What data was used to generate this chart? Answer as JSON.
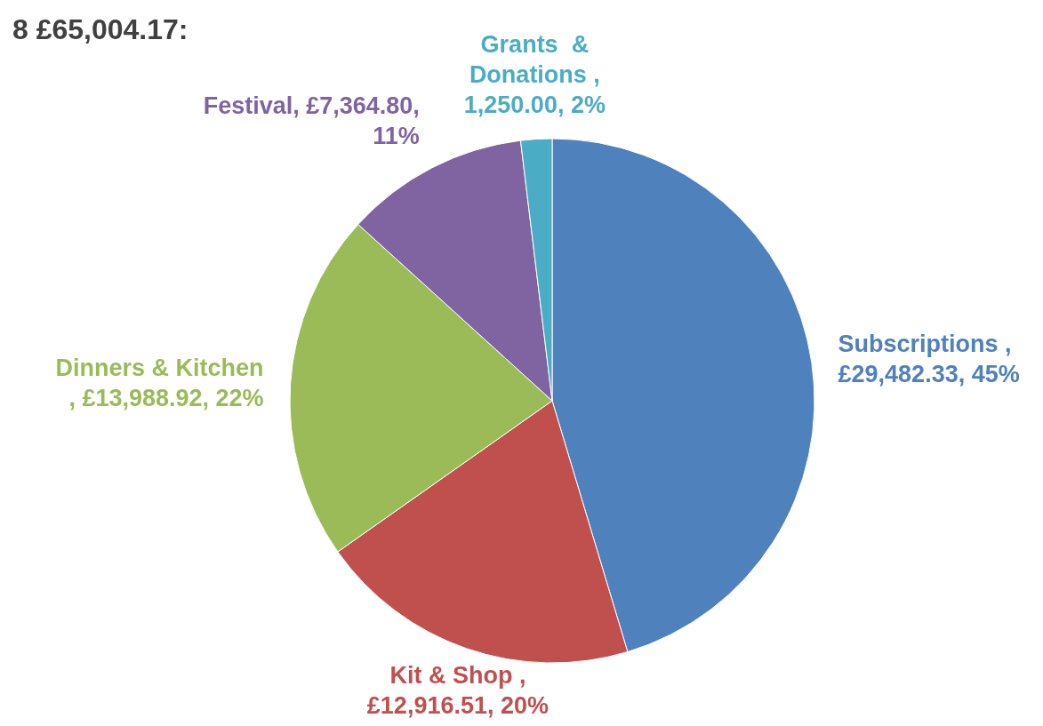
{
  "chart_data": {
    "type": "pie",
    "title": "8 £65,004.17:",
    "categories": [
      "Subscriptions",
      "Kit & Shop",
      "Dinners & Kitchen",
      "Festival",
      "Grants  &\nDonations"
    ],
    "values": [
      29482.33,
      12916.51,
      13988.92,
      7364.8,
      1250.0
    ],
    "colors": [
      "#4f81bd",
      "#c0504d",
      "#9bbb59",
      "#8064a2",
      "#4bacc6"
    ],
    "value_labels": [
      " ,\n£29,482.33, 45%",
      " ,\n£12,916.51, 20%",
      "\n, £13,988.92, 22%",
      ", £7,364.80,\n11%",
      " ,\n1,250.00, 2%"
    ]
  }
}
